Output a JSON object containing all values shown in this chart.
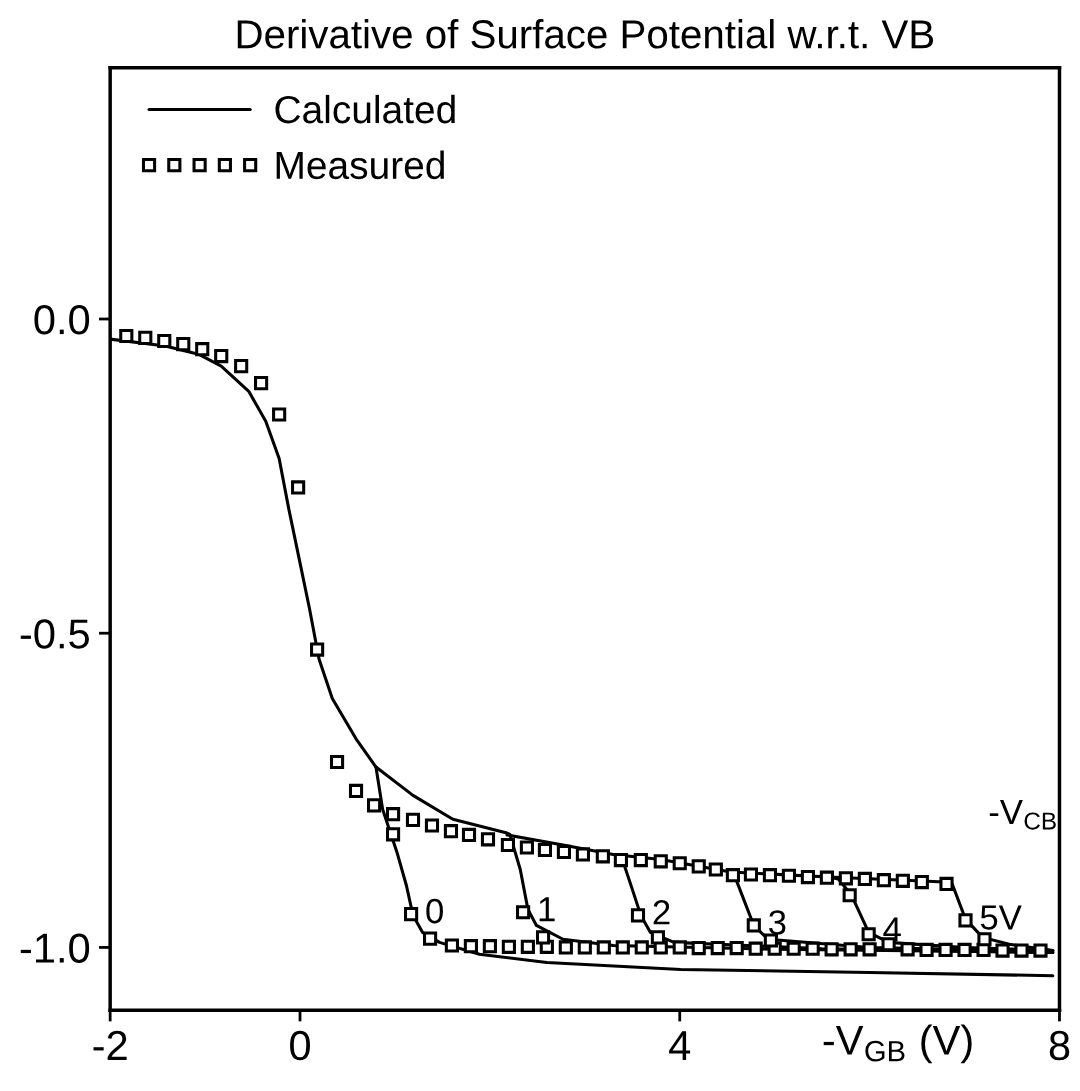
{
  "chart_data": {
    "type": "line",
    "title": "Derivative of Surface Potential w.r.t. VB",
    "xlabel": "-V$_{GB}$ (V)",
    "xlim": [
      -2,
      8
    ],
    "ylim": [
      -1.1,
      0.4
    ],
    "xticks": [
      -2,
      0,
      4,
      8
    ],
    "yticks": [
      {
        "value": 0,
        "label": "0.0"
      },
      {
        "value": -0.5,
        "label": "-0.5"
      },
      {
        "value": -1,
        "label": "-1.0"
      }
    ],
    "grid": false,
    "legend": "top left",
    "line_style": "solid",
    "series": [
      {
        "name": "Calculated",
        "color": "#000000",
        "x": [
          -2,
          -1.42,
          -1.07,
          -0.83,
          -0.54,
          -0.36,
          -0.22,
          -0.12,
          -0.01,
          0.1,
          0.2,
          0.34,
          0.59,
          0.8,
          0.87,
          1.02,
          1.12,
          1.19,
          1.29,
          1.47,
          1.89,
          2.6,
          4.01,
          6.0,
          7.93
        ],
        "values": [
          -0.032,
          -0.043,
          -0.056,
          -0.075,
          -0.115,
          -0.163,
          -0.222,
          -0.301,
          -0.381,
          -0.461,
          -0.541,
          -0.604,
          -0.668,
          -0.713,
          -0.78,
          -0.848,
          -0.901,
          -0.949,
          -0.976,
          -0.992,
          -1.011,
          -1.024,
          -1.035,
          -1.04,
          -1.045
        ]
      },
      {
        "type": "line",
        "color": "#000000",
        "x": [
          0.8,
          1.19,
          1.61,
          2.18,
          2.21,
          2.32,
          2.4,
          2.49,
          2.77,
          3.3,
          5.0,
          7.93
        ],
        "values": [
          -0.713,
          -0.758,
          -0.796,
          -0.818,
          -0.82,
          -0.876,
          -0.939,
          -0.965,
          -0.987,
          -0.997,
          -1.003,
          -1.008
        ]
      },
      {
        "type": "line",
        "color": "#000000",
        "x": [
          2.18,
          2.77,
          3.3,
          3.38,
          3.51,
          3.59,
          3.69,
          3.94,
          5.5,
          7.93
        ],
        "values": [
          -0.821,
          -0.837,
          -0.852,
          -0.853,
          -0.912,
          -0.949,
          -0.976,
          -0.992,
          -1.002,
          -1.008
        ]
      },
      {
        "type": "line",
        "color": "#000000",
        "x": [
          3.3,
          3.8,
          4.54,
          4.57,
          4.78,
          4.93,
          6.0,
          7.93
        ],
        "values": [
          -0.852,
          -0.86,
          -0.88,
          -0.883,
          -0.965,
          -0.987,
          -1.0,
          -1.006
        ]
      },
      {
        "type": "line",
        "color": "#000000",
        "x": [
          4.54,
          5.57,
          5.67,
          5.81,
          5.99,
          6.2,
          7.0,
          7.93
        ],
        "values": [
          -0.88,
          -0.888,
          -0.891,
          -0.917,
          -0.976,
          -0.992,
          -1.0,
          -1.005
        ]
      },
      {
        "type": "line",
        "color": "#000000",
        "x": [
          5.57,
          6.79,
          6.87,
          7.01,
          7.19,
          7.47,
          7.93
        ],
        "values": [
          -0.888,
          -0.896,
          -0.899,
          -0.955,
          -0.984,
          -0.995,
          -1.005
        ]
      },
      {
        "type": "scatter",
        "name": "Measured",
        "color": "#000000",
        "x": [
          -1.83,
          -1.63,
          -1.43,
          -1.23,
          -1.03,
          -0.83,
          -0.62,
          -0.41,
          -0.22,
          -0.02,
          0.18,
          0.39,
          0.59,
          0.78,
          0.98,
          0.98,
          1.17,
          1.37,
          1.6,
          1.8,
          2.0,
          2.2,
          2.4,
          2.6,
          2.8,
          3.0,
          3.2,
          3.4,
          3.6,
          3.8,
          4.0,
          4.2,
          4.4,
          4.6,
          4.8,
          5.0,
          5.2,
          5.4,
          5.6,
          5.8,
          6.0,
          6.2,
          6.4,
          6.6,
          6.8,
          7.0,
          7.2,
          7.4,
          7.6,
          7.8
        ],
        "values": [
          -0.027,
          -0.03,
          -0.035,
          -0.04,
          -0.048,
          -0.059,
          -0.075,
          -0.102,
          -0.152,
          -0.268,
          -0.526,
          -0.705,
          -0.751,
          -0.774,
          -0.788,
          -0.82,
          -0.947,
          -0.986,
          -0.997,
          -0.998,
          -0.998,
          -0.999,
          -0.999,
          -0.999,
          -1.0,
          -1.0,
          -1.0,
          -1.0,
          -1.0,
          -1.0,
          -1.0,
          -1.001,
          -1.001,
          -1.001,
          -1.002,
          -1.002,
          -1.002,
          -1.002,
          -1.003,
          -1.003,
          -1.003,
          null,
          -1.003,
          -1.004,
          -1.004,
          -1.004,
          -1.004,
          -1.005,
          -1.005,
          -1.005
        ]
      },
      {
        "type": "scatter",
        "color": "#000000",
        "x": [
          1.19,
          1.39,
          1.59,
          1.78,
          1.98,
          2.19,
          2.35,
          2.56
        ],
        "values": [
          -0.797,
          -0.806,
          -0.815,
          -0.821,
          -0.828,
          -0.837,
          -0.944,
          -0.984
        ]
      },
      {
        "type": "scatter",
        "color": "#000000",
        "x": [
          2.39,
          2.58,
          2.78,
          2.98,
          3.19,
          3.38,
          3.56,
          3.77
        ],
        "values": [
          -0.841,
          -0.845,
          -0.848,
          -0.852,
          -0.855,
          -0.861,
          -0.949,
          -0.984
        ]
      },
      {
        "type": "scatter",
        "color": "#000000",
        "x": [
          3.59,
          3.8,
          4.0,
          4.2,
          4.38,
          4.56,
          4.78,
          4.96
        ],
        "values": [
          -0.861,
          -0.863,
          -0.866,
          -0.871,
          -0.876,
          -0.885,
          -0.965,
          -0.989
        ]
      },
      {
        "type": "scatter",
        "color": "#000000",
        "x": [
          4.75,
          4.95,
          5.15,
          5.35,
          5.55,
          5.79,
          5.99,
          6.2
        ],
        "values": [
          -0.884,
          -0.885,
          -0.886,
          -0.888,
          -0.889,
          -0.917,
          -0.979,
          -0.995
        ]
      },
      {
        "type": "scatter",
        "color": "#000000",
        "x": [
          5.75,
          5.95,
          6.15,
          6.35,
          6.55,
          6.81,
          7.01,
          7.21
        ],
        "values": [
          -0.89,
          -0.891,
          -0.893,
          -0.894,
          -0.896,
          -0.899,
          -0.957,
          -0.987
        ]
      }
    ],
    "annotations": [
      {
        "text": "0",
        "x": 1.17,
        "y": -0.947
      },
      {
        "text": "1",
        "x": 2.35,
        "y": -0.944
      },
      {
        "text": "2",
        "x": 3.56,
        "y": -0.949
      },
      {
        "text": "3",
        "x": 4.78,
        "y": -0.965
      },
      {
        "text": "4",
        "x": 5.99,
        "y": -0.976
      },
      {
        "text": "5V",
        "x": 7.01,
        "y": -0.957
      },
      "-V$_{CB}$"
    ]
  }
}
